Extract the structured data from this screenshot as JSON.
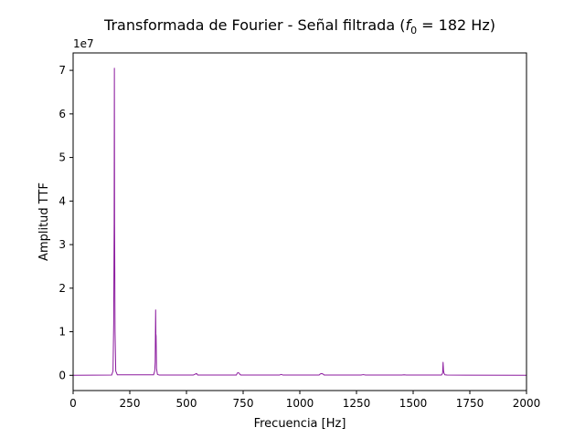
{
  "chart_data": {
    "type": "line",
    "title": "Transformada de Fourier - Señal filtrada (",
    "title_var": "f",
    "title_sub": "0",
    "title_tail": " = 182 Hz)",
    "xlabel": "Frecuencia [Hz]",
    "ylabel": "Amplitud TTF",
    "y_multiplier": "1e7",
    "xlim": [
      0,
      2000
    ],
    "ylim": [
      -0.35,
      7.4
    ],
    "y_unit_scale": 10000000,
    "xticks": [
      0,
      250,
      500,
      750,
      1000,
      1250,
      1500,
      1750,
      2000
    ],
    "xtick_labels": [
      "0",
      "250",
      "500",
      "750",
      "1000",
      "1250",
      "1500",
      "1750",
      "2000"
    ],
    "yticks": [
      0,
      1,
      2,
      3,
      4,
      5,
      6,
      7
    ],
    "ytick_labels": [
      "0",
      "1",
      "2",
      "3",
      "4",
      "5",
      "6",
      "7"
    ],
    "grid": false,
    "line_color": "#8b1a9e",
    "series": [
      {
        "x": [
          0,
          170,
          176,
          179,
          181,
          182,
          183,
          185,
          188,
          195,
          355,
          360,
          362,
          364,
          365,
          366,
          368,
          372,
          380,
          530,
          540,
          545,
          550,
          720,
          724,
          728,
          732,
          736,
          740,
          910,
          918,
          926,
          1085,
          1090,
          1096,
          1102,
          1108,
          1270,
          1280,
          1290,
          1450,
          1460,
          1470,
          1625,
          1630,
          1632,
          1634,
          1636,
          1640,
          1650,
          2000
        ],
        "y": [
          0,
          0.005,
          0.1,
          1.2,
          3.5,
          7.05,
          3.5,
          1.0,
          0.1,
          0.01,
          0.01,
          0.1,
          0.3,
          1.5,
          0.95,
          0.9,
          0.15,
          0.02,
          0.005,
          0.005,
          0.03,
          0.04,
          0.005,
          0.005,
          0.05,
          0.06,
          0.05,
          0.02,
          0.005,
          0.005,
          0.02,
          0.005,
          0.005,
          0.03,
          0.04,
          0.03,
          0.005,
          0.005,
          0.015,
          0.005,
          0.005,
          0.01,
          0.005,
          0.005,
          0.05,
          0.3,
          0.1,
          0.05,
          0.01,
          0.005,
          0
        ]
      }
    ]
  }
}
